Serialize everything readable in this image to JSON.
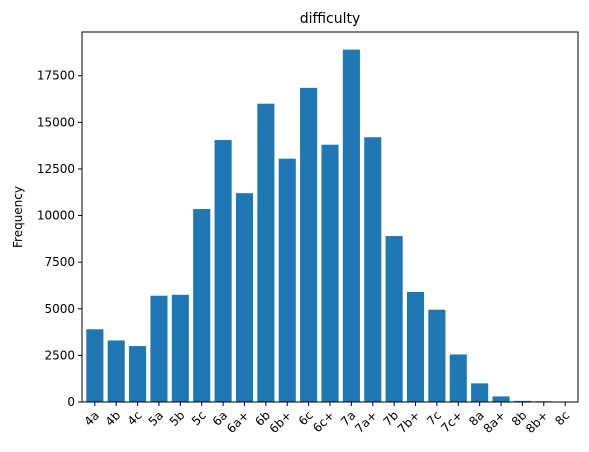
{
  "chart_data": {
    "type": "bar",
    "title": "difficulty",
    "xlabel": "",
    "ylabel": "Frequency",
    "categories": [
      "4a",
      "4b",
      "4c",
      "5a",
      "5b",
      "5c",
      "6a",
      "6a+",
      "6b",
      "6b+",
      "6c",
      "6c+",
      "7a",
      "7a+",
      "7b",
      "7b+",
      "7c",
      "7c+",
      "8a",
      "8a+",
      "8b",
      "8b+",
      "8c"
    ],
    "values": [
      3900,
      3300,
      3000,
      5700,
      5750,
      10350,
      14050,
      11200,
      16000,
      13050,
      16850,
      13800,
      18900,
      14200,
      8900,
      5900,
      4950,
      2550,
      1000,
      300,
      60,
      40,
      20
    ],
    "yticks": [
      0,
      2500,
      5000,
      7500,
      10000,
      12500,
      15000,
      17500
    ],
    "ytick_labels": [
      "0",
      "2500",
      "5000",
      "7500",
      "10000",
      "12500",
      "15000",
      "17500"
    ],
    "ylim": [
      0,
      19845
    ],
    "bar_color": "#1f77b4",
    "grid": false,
    "legend": "none"
  }
}
